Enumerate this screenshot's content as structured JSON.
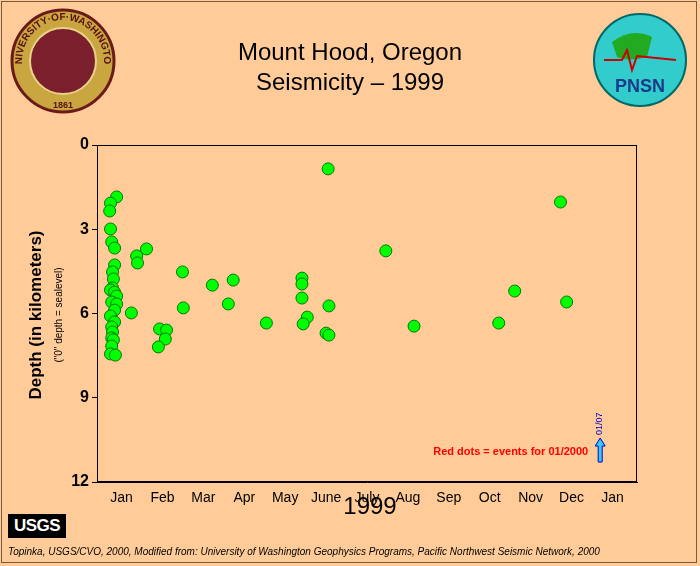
{
  "chart_data": {
    "type": "scatter",
    "title": "Mount Hood, Oregon",
    "subtitle": "Seismicity – 1999",
    "x_label": "1999",
    "y_label": "Depth (in kilometers)",
    "y_sublabel": "(\"0\" depth = sealevel)",
    "x": [
      0.38,
      0.23,
      0.21,
      0.23,
      0.26,
      0.33,
      0.33,
      0.28,
      0.3,
      0.28,
      0.23,
      0.33,
      0.38,
      0.26,
      0.38,
      0.33,
      0.23,
      0.33,
      0.26,
      0.28,
      0.26,
      0.3,
      0.26,
      0.23,
      0.35,
      0.74,
      0.87,
      0.89,
      1.11,
      1.43,
      1.6,
      1.57,
      1.4,
      1.99,
      2.01,
      2.72,
      3.23,
      3.11,
      4.04,
      4.91,
      4.91,
      4.91,
      5.04,
      4.94,
      5.55,
      5.57,
      5.5,
      5.57,
      6.96,
      7.65,
      9.72,
      10.11,
      11.23,
      11.38
    ],
    "values": [
      1.85,
      2.07,
      2.35,
      2.99,
      3.45,
      3.67,
      4.27,
      4.52,
      4.77,
      5.09,
      5.16,
      5.24,
      5.38,
      5.59,
      5.66,
      5.88,
      6.09,
      6.3,
      6.48,
      6.66,
      6.87,
      6.94,
      7.16,
      7.44,
      7.48,
      5.98,
      3.95,
      4.2,
      3.7,
      6.55,
      6.59,
      6.91,
      7.19,
      4.52,
      5.8,
      4.99,
      4.81,
      5.66,
      6.34,
      4.74,
      4.95,
      5.45,
      6.13,
      6.37,
      0.85,
      5.73,
      6.7,
      6.77,
      3.77,
      6.45,
      6.34,
      5.2,
      2.03,
      5.59
    ],
    "color": "#00ff00",
    "marker": "circle",
    "xlim": [
      -0.1,
      13.1
    ],
    "xticks": [
      {
        "value": 0.5,
        "label": "Jan"
      },
      {
        "value": 1.5,
        "label": "Feb"
      },
      {
        "value": 2.5,
        "label": "Mar"
      },
      {
        "value": 3.5,
        "label": "Apr"
      },
      {
        "value": 4.5,
        "label": "May"
      },
      {
        "value": 5.5,
        "label": "June"
      },
      {
        "value": 6.5,
        "label": "July"
      },
      {
        "value": 7.5,
        "label": "Aug"
      },
      {
        "value": 8.5,
        "label": "Sep"
      },
      {
        "value": 9.5,
        "label": "Oct"
      },
      {
        "value": 10.5,
        "label": "Nov"
      },
      {
        "value": 11.5,
        "label": "Dec"
      },
      {
        "value": 12.5,
        "label": "Jan"
      }
    ],
    "ylim": [
      0,
      12
    ],
    "yticks": [
      0,
      3,
      6,
      9,
      12
    ],
    "grid": false,
    "annotations": [
      {
        "text": "Red dots = events for 01/2000",
        "color": "#ff0000"
      },
      {
        "text": "01/07",
        "x": 12.2,
        "color": "#0000cc"
      }
    ]
  },
  "logos": {
    "left": "UNIVERSITY·OF·WASHINGTON",
    "left_year": "1861",
    "right": "PNSN",
    "bottom": "USGS"
  },
  "footer": "Topinka, USGS/CVO, 2000, Modified from: University of Washington Geophysics Programs, Pacific Northwest Seismic Network, 2000"
}
